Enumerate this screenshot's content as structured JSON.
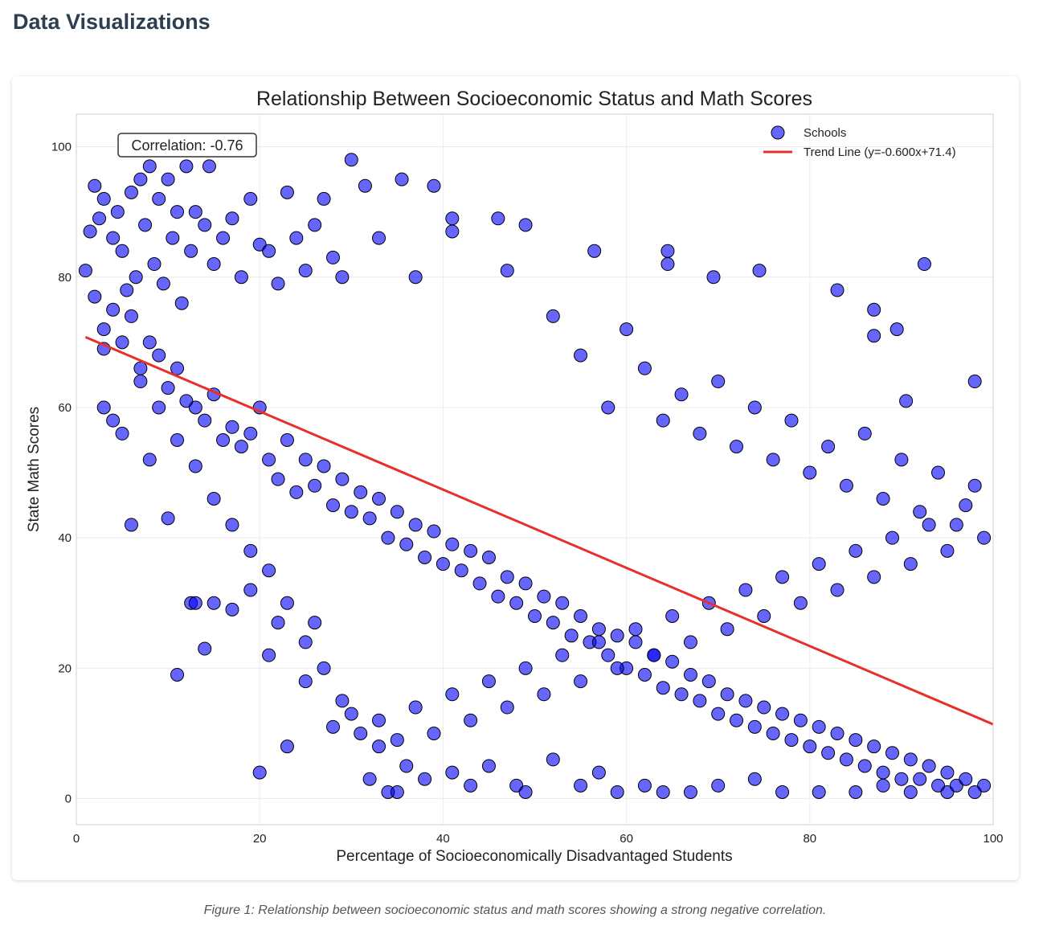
{
  "page": {
    "heading": "Data Visualizations",
    "caption": "Figure 1: Relationship between socioeconomic status and math scores showing a strong negative correlation."
  },
  "chart_data": {
    "type": "scatter",
    "title": "Relationship Between Socioeconomic Status and Math Scores",
    "xlabel": "Percentage of Socioeconomically Disadvantaged Students",
    "ylabel": "State Math Scores",
    "xlim": [
      0,
      100
    ],
    "ylim": [
      -4,
      105
    ],
    "xticks": [
      0,
      20,
      40,
      60,
      80,
      100
    ],
    "yticks": [
      0,
      20,
      40,
      60,
      80,
      100
    ],
    "grid": true,
    "legend_position": "top-right",
    "annotation": "Correlation: -0.76",
    "colors": {
      "points": "#0000ff",
      "point_edge": "#000000",
      "trend": "#e8302a"
    },
    "series": [
      {
        "name": "Schools",
        "kind": "scatter",
        "points": [
          [
            1,
            81
          ],
          [
            1.5,
            87
          ],
          [
            2,
            94
          ],
          [
            2.5,
            89
          ],
          [
            3,
            92
          ],
          [
            2,
            77
          ],
          [
            3,
            69
          ],
          [
            4,
            86
          ],
          [
            4.5,
            90
          ],
          [
            5,
            84
          ],
          [
            5.5,
            78
          ],
          [
            6,
            93
          ],
          [
            6.5,
            80
          ],
          [
            7,
            95
          ],
          [
            7.5,
            88
          ],
          [
            8,
            97
          ],
          [
            8.5,
            82
          ],
          [
            9,
            92
          ],
          [
            9.5,
            79
          ],
          [
            10,
            95
          ],
          [
            10.5,
            86
          ],
          [
            11,
            90
          ],
          [
            11.5,
            76
          ],
          [
            12,
            97
          ],
          [
            12.5,
            84
          ],
          [
            13,
            90
          ],
          [
            14,
            88
          ],
          [
            14.5,
            97
          ],
          [
            15,
            82
          ],
          [
            16,
            86
          ],
          [
            17,
            89
          ],
          [
            18,
            80
          ],
          [
            19,
            92
          ],
          [
            20,
            85
          ],
          [
            21,
            84
          ],
          [
            22,
            79
          ],
          [
            23,
            93
          ],
          [
            24,
            86
          ],
          [
            25,
            81
          ],
          [
            26,
            88
          ],
          [
            27,
            92
          ],
          [
            28,
            83
          ],
          [
            29,
            80
          ],
          [
            30,
            98
          ],
          [
            31.5,
            94
          ],
          [
            33,
            86
          ],
          [
            35.5,
            95
          ],
          [
            37,
            80
          ],
          [
            39,
            94
          ],
          [
            41,
            89
          ],
          [
            41,
            87
          ],
          [
            46,
            89
          ],
          [
            49,
            88
          ],
          [
            47,
            81
          ],
          [
            56.5,
            84
          ],
          [
            64.5,
            84
          ],
          [
            64.5,
            82
          ],
          [
            69.5,
            80
          ],
          [
            74.5,
            81
          ],
          [
            83,
            78
          ],
          [
            87,
            75
          ],
          [
            92.5,
            82
          ],
          [
            89.5,
            72
          ],
          [
            87,
            71
          ],
          [
            98,
            64
          ],
          [
            90.5,
            61
          ],
          [
            3,
            60
          ],
          [
            4,
            58
          ],
          [
            5,
            56
          ],
          [
            6,
            42
          ],
          [
            8,
            52
          ],
          [
            10,
            43
          ],
          [
            11,
            19
          ],
          [
            12.5,
            30
          ],
          [
            13,
            30
          ],
          [
            14,
            23
          ],
          [
            15,
            30
          ],
          [
            17,
            29
          ],
          [
            19,
            32
          ],
          [
            20,
            4
          ],
          [
            21,
            22
          ],
          [
            22,
            27
          ],
          [
            23,
            8
          ],
          [
            25,
            18
          ],
          [
            26,
            27
          ],
          [
            28,
            11
          ],
          [
            30,
            13
          ],
          [
            32,
            3
          ],
          [
            33,
            8
          ],
          [
            34,
            1
          ],
          [
            35,
            1
          ],
          [
            36,
            5
          ],
          [
            38,
            3
          ],
          [
            41,
            4
          ],
          [
            43,
            2
          ],
          [
            45,
            5
          ],
          [
            48,
            2
          ],
          [
            49,
            1
          ],
          [
            52,
            6
          ],
          [
            55,
            2
          ],
          [
            57,
            4
          ],
          [
            59,
            1
          ],
          [
            62,
            2
          ],
          [
            64,
            1
          ],
          [
            67,
            1
          ],
          [
            70,
            2
          ],
          [
            74,
            3
          ],
          [
            77,
            1
          ],
          [
            81,
            1
          ],
          [
            85,
            1
          ],
          [
            88,
            2
          ],
          [
            91,
            1
          ],
          [
            95,
            1
          ],
          [
            99,
            2
          ],
          [
            3,
            72
          ],
          [
            4,
            75
          ],
          [
            5,
            70
          ],
          [
            6,
            74
          ],
          [
            7,
            66
          ],
          [
            8,
            70
          ],
          [
            9,
            68
          ],
          [
            10,
            63
          ],
          [
            11,
            66
          ],
          [
            12,
            61
          ],
          [
            13,
            60
          ],
          [
            14,
            58
          ],
          [
            15,
            62
          ],
          [
            16,
            55
          ],
          [
            17,
            57
          ],
          [
            18,
            54
          ],
          [
            19,
            56
          ],
          [
            20,
            60
          ],
          [
            21,
            52
          ],
          [
            22,
            49
          ],
          [
            23,
            55
          ],
          [
            24,
            47
          ],
          [
            25,
            52
          ],
          [
            26,
            48
          ],
          [
            27,
            51
          ],
          [
            28,
            45
          ],
          [
            29,
            49
          ],
          [
            30,
            44
          ],
          [
            31,
            47
          ],
          [
            32,
            43
          ],
          [
            33,
            46
          ],
          [
            34,
            40
          ],
          [
            35,
            44
          ],
          [
            36,
            39
          ],
          [
            37,
            42
          ],
          [
            38,
            37
          ],
          [
            39,
            41
          ],
          [
            40,
            36
          ],
          [
            41,
            39
          ],
          [
            42,
            35
          ],
          [
            43,
            38
          ],
          [
            44,
            33
          ],
          [
            45,
            37
          ],
          [
            46,
            31
          ],
          [
            47,
            34
          ],
          [
            48,
            30
          ],
          [
            49,
            33
          ],
          [
            50,
            28
          ],
          [
            51,
            31
          ],
          [
            52,
            27
          ],
          [
            53,
            30
          ],
          [
            54,
            25
          ],
          [
            55,
            28
          ],
          [
            56,
            24
          ],
          [
            57,
            26
          ],
          [
            58,
            22
          ],
          [
            59,
            25
          ],
          [
            60,
            20
          ],
          [
            61,
            24
          ],
          [
            62,
            19
          ],
          [
            63,
            22
          ],
          [
            64,
            17
          ],
          [
            65,
            21
          ],
          [
            66,
            16
          ],
          [
            67,
            19
          ],
          [
            68,
            15
          ],
          [
            69,
            18
          ],
          [
            70,
            13
          ],
          [
            71,
            16
          ],
          [
            72,
            12
          ],
          [
            73,
            15
          ],
          [
            74,
            11
          ],
          [
            75,
            14
          ],
          [
            76,
            10
          ],
          [
            77,
            13
          ],
          [
            78,
            9
          ],
          [
            79,
            12
          ],
          [
            80,
            8
          ],
          [
            81,
            11
          ],
          [
            82,
            7
          ],
          [
            83,
            10
          ],
          [
            84,
            6
          ],
          [
            85,
            9
          ],
          [
            86,
            5
          ],
          [
            87,
            8
          ],
          [
            88,
            4
          ],
          [
            89,
            7
          ],
          [
            90,
            3
          ],
          [
            91,
            6
          ],
          [
            92,
            3
          ],
          [
            93,
            5
          ],
          [
            94,
            2
          ],
          [
            95,
            4
          ],
          [
            96,
            2
          ],
          [
            97,
            3
          ],
          [
            98,
            1
          ],
          [
            52,
            74
          ],
          [
            55,
            68
          ],
          [
            58,
            60
          ],
          [
            60,
            72
          ],
          [
            62,
            66
          ],
          [
            64,
            58
          ],
          [
            66,
            62
          ],
          [
            68,
            56
          ],
          [
            70,
            64
          ],
          [
            72,
            54
          ],
          [
            74,
            60
          ],
          [
            76,
            52
          ],
          [
            78,
            58
          ],
          [
            80,
            50
          ],
          [
            82,
            54
          ],
          [
            84,
            48
          ],
          [
            86,
            56
          ],
          [
            88,
            46
          ],
          [
            90,
            52
          ],
          [
            92,
            44
          ],
          [
            94,
            50
          ],
          [
            96,
            42
          ],
          [
            98,
            48
          ],
          [
            99,
            40
          ],
          [
            97,
            45
          ],
          [
            95,
            38
          ],
          [
            93,
            42
          ],
          [
            91,
            36
          ],
          [
            89,
            40
          ],
          [
            87,
            34
          ],
          [
            85,
            38
          ],
          [
            83,
            32
          ],
          [
            81,
            36
          ],
          [
            79,
            30
          ],
          [
            77,
            34
          ],
          [
            75,
            28
          ],
          [
            73,
            32
          ],
          [
            71,
            26
          ],
          [
            69,
            30
          ],
          [
            67,
            24
          ],
          [
            65,
            28
          ],
          [
            63,
            22
          ],
          [
            61,
            26
          ],
          [
            59,
            20
          ],
          [
            57,
            24
          ],
          [
            55,
            18
          ],
          [
            53,
            22
          ],
          [
            51,
            16
          ],
          [
            49,
            20
          ],
          [
            47,
            14
          ],
          [
            45,
            18
          ],
          [
            43,
            12
          ],
          [
            41,
            16
          ],
          [
            39,
            10
          ],
          [
            37,
            14
          ],
          [
            35,
            9
          ],
          [
            33,
            12
          ],
          [
            31,
            10
          ],
          [
            29,
            15
          ],
          [
            27,
            20
          ],
          [
            25,
            24
          ],
          [
            23,
            30
          ],
          [
            21,
            35
          ],
          [
            19,
            38
          ],
          [
            17,
            42
          ],
          [
            15,
            46
          ],
          [
            13,
            51
          ],
          [
            11,
            55
          ],
          [
            9,
            60
          ],
          [
            7,
            64
          ]
        ]
      },
      {
        "name": "Trend Line (y=-0.600x+71.4)",
        "kind": "line",
        "x": [
          1,
          100
        ],
        "y": [
          70.8,
          11.4
        ]
      }
    ]
  }
}
